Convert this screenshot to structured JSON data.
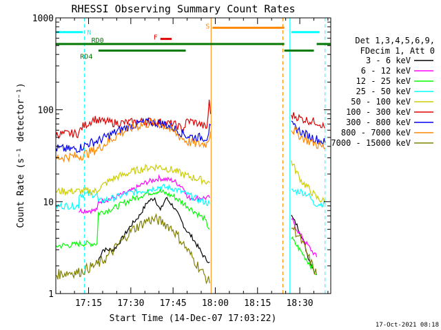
{
  "chart_data": {
    "type": "line",
    "title": "RHESSI Observing Summary Count Rates",
    "xlabel": "Start Time (14-Dec-07 17:03:22)",
    "ylabel": "Count Rate (s⁻¹ detector⁻¹)",
    "y_scale": "log",
    "ylim": [
      1,
      1000
    ],
    "xlim": [
      "17:03:22",
      "18:41:00"
    ],
    "grid": false,
    "x_ticks": [
      "17:15",
      "17:30",
      "17:45",
      "18:00",
      "18:15",
      "18:30"
    ],
    "y_ticks": [
      "1",
      "10",
      "100",
      "1000"
    ],
    "timestamp": "17-Oct-2021 08:18",
    "legend": {
      "placement": "right",
      "header": [
        "Det 1,3,4,5,6,9,",
        "FDecim 1, Att 0"
      ],
      "entries": [
        {
          "label": "3 - 6 keV",
          "color": "#000000"
        },
        {
          "label": "6 - 12 keV",
          "color": "#ff00ff"
        },
        {
          "label": "12 - 25 keV",
          "color": "#00ff00"
        },
        {
          "label": "25 - 50 keV",
          "color": "#00ffff"
        },
        {
          "label": "50 - 100 keV",
          "color": "#cccc00"
        },
        {
          "label": "100 - 300 keV",
          "color": "#e00000"
        },
        {
          "label": "300 - 800 keV",
          "color": "#0000ee"
        },
        {
          "label": "800 - 7000 keV",
          "color": "#ff8800"
        },
        {
          "label": "7000 - 15000 keV",
          "color": "#808000"
        }
      ]
    },
    "flags": [
      {
        "label": "N",
        "color": "#00ffff",
        "level": 700,
        "segments": [
          [
            "17:03:22",
            "17:13:00"
          ],
          [
            "18:27:00",
            "18:37:00"
          ]
        ]
      },
      {
        "label": "S",
        "color": "#ff8800",
        "level": 780,
        "segments": [
          [
            "17:59:00",
            "18:24:30"
          ]
        ]
      },
      {
        "label": "F",
        "color": "#e00000",
        "level": 590,
        "segments": [
          [
            "17:40:30",
            "17:44:30"
          ]
        ]
      },
      {
        "label": "RD0",
        "color": "#007700",
        "level": 520,
        "segments": [
          [
            "17:03:22",
            "18:24:30"
          ],
          [
            "18:36:00",
            "18:41:00"
          ]
        ]
      },
      {
        "label": "RD4",
        "color": "#007700",
        "level": 440,
        "segments": [
          [
            "17:18:30",
            "17:49:30"
          ],
          [
            "18:24:30",
            "18:35:00"
          ]
        ]
      }
    ],
    "markers": [
      {
        "time": "17:58:30",
        "color": "#ff8800",
        "style": "solid"
      },
      {
        "time": "18:24:00",
        "color": "#ff8800",
        "style": "dashed"
      },
      {
        "time": "17:03:22",
        "color": "#00ffff",
        "style": "solid"
      },
      {
        "time": "18:26:30",
        "color": "#00ffff",
        "style": "solid"
      },
      {
        "time": "17:13:30",
        "color": "#00ffff",
        "style": "dashed"
      },
      {
        "time": "18:39:00",
        "color": "#00ffff",
        "style": "dashed"
      }
    ],
    "series": [
      {
        "name": "3 - 6 keV",
        "color": "#000000",
        "segments": [
          {
            "x": [
              "17:18:30",
              "17:20:00",
              "17:24:00",
              "17:27:00",
              "17:30:00",
              "17:33:00",
              "17:36:00",
              "17:38:30",
              "17:40:30",
              "17:42:30",
              "17:45:00",
              "17:47:00",
              "17:49:30",
              "17:52:00",
              "17:54:30",
              "17:56:00",
              "17:58:00"
            ],
            "y": [
              2.3,
              3.0,
              3.0,
              4.0,
              5.5,
              7.0,
              10.0,
              11.0,
              8.0,
              11.0,
              9.0,
              7.0,
              5.0,
              4.0,
              3.0,
              2.5,
              2.2
            ]
          },
          {
            "x": [
              "18:27:00",
              "18:29:00",
              "18:31:00",
              "18:33:00",
              "18:35:00"
            ],
            "y": [
              7.0,
              5.5,
              4.0,
              2.5,
              1.8
            ]
          }
        ]
      },
      {
        "name": "6 - 12 keV",
        "color": "#ff00ff",
        "segments": [
          {
            "x": [
              "17:11:30",
              "17:18:00",
              "17:18:30",
              "17:24:00",
              "17:30:00",
              "17:35:00",
              "17:40:00",
              "17:45:00",
              "17:49:00",
              "17:50:00",
              "17:58:00"
            ],
            "y": [
              8.0,
              8.0,
              10.0,
              11.0,
              13.0,
              16.0,
              18.0,
              17.0,
              14.0,
              11.0,
              11.0
            ]
          },
          {
            "x": [
              "18:27:00",
              "18:29:00",
              "18:31:00",
              "18:34:00",
              "18:36:00"
            ],
            "y": [
              6.5,
              5.0,
              4.0,
              3.0,
              2.5
            ]
          }
        ]
      },
      {
        "name": "12 - 25 keV",
        "color": "#00ff00",
        "segments": [
          {
            "x": [
              "17:03:22",
              "17:10:00",
              "17:11:30",
              "17:18:00",
              "17:18:30",
              "17:24:00",
              "17:30:00",
              "17:36:00",
              "17:40:00",
              "17:45:00",
              "17:50:00",
              "17:56:00",
              "17:58:00"
            ],
            "y": [
              3.3,
              3.4,
              3.5,
              3.5,
              7.5,
              8.5,
              10.5,
              12.5,
              13.0,
              11.5,
              9.0,
              6.5,
              5.0
            ]
          },
          {
            "x": [
              "18:27:00",
              "18:30:00",
              "18:34:00",
              "18:36:00"
            ],
            "y": [
              4.0,
              3.0,
              2.0,
              1.6
            ]
          }
        ]
      },
      {
        "name": "25 - 50 keV",
        "color": "#00ffff",
        "segments": [
          {
            "x": [
              "17:03:22",
              "17:11:30",
              "17:11:40",
              "17:18:00",
              "17:18:30",
              "17:24:00",
              "17:30:00",
              "17:36:00",
              "17:40:00",
              "17:45:00",
              "17:50:00",
              "17:54:00",
              "17:58:00"
            ],
            "y": [
              9.0,
              9.0,
              12.0,
              12.0,
              10.0,
              11.0,
              12.5,
              13.5,
              14.5,
              14.0,
              12.0,
              10.5,
              9.5
            ]
          },
          {
            "x": [
              "18:27:00",
              "18:30:00",
              "18:33:00",
              "18:35:00",
              "18:39:00"
            ],
            "y": [
              13.0,
              13.0,
              12.0,
              9.5,
              9.5
            ]
          }
        ]
      },
      {
        "name": "50 - 100 keV",
        "color": "#cccc00",
        "segments": [
          {
            "x": [
              "17:03:22",
              "17:11:30",
              "17:18:00",
              "17:18:30",
              "17:24:00",
              "17:30:00",
              "17:36:00",
              "17:40:00",
              "17:45:00",
              "17:50:00",
              "17:56:00",
              "17:58:00"
            ],
            "y": [
              13.0,
              13.0,
              13.0,
              14.0,
              18.0,
              21.0,
              23.5,
              24.0,
              22.0,
              19.0,
              17.0,
              16.0
            ]
          },
          {
            "x": [
              "18:27:00",
              "18:28:30",
              "18:30:30",
              "18:34:00",
              "18:36:00",
              "18:39:00"
            ],
            "y": [
              28.0,
              22.0,
              17.0,
              13.0,
              11.0,
              10.0
            ]
          }
        ]
      },
      {
        "name": "100 - 300 keV",
        "color": "#e00000",
        "segments": [
          {
            "x": [
              "17:03:22",
              "17:08:00",
              "17:11:30",
              "17:12:00",
              "17:13:00",
              "17:15:00",
              "17:17:00",
              "17:18:30",
              "17:21:00",
              "17:24:00",
              "17:27:00",
              "17:30:00",
              "17:33:00",
              "17:36:00",
              "17:39:00",
              "17:42:00",
              "17:45:00",
              "17:47:00",
              "17:48:30",
              "17:50:00",
              "17:52:00",
              "17:54:00",
              "17:56:00",
              "17:57:00",
              "17:57:50",
              "17:58:20"
            ],
            "y": [
              54,
              55,
              55,
              60,
              66,
              72,
              80,
              76,
              74,
              72,
              72,
              73,
              74,
              75,
              74,
              72,
              70,
              66,
              60,
              76,
              74,
              71,
              66,
              63,
              120,
              90
            ]
          },
          {
            "x": [
              "18:27:00",
              "18:29:00",
              "18:30:30",
              "18:32:00",
              "18:34:00",
              "18:36:00",
              "18:37:30",
              "18:39:00"
            ],
            "y": [
              88,
              84,
              80,
              78,
              75,
              74,
              70,
              63
            ]
          }
        ]
      },
      {
        "name": "300 - 800 keV",
        "color": "#0000ee",
        "segments": [
          {
            "x": [
              "17:03:22",
              "17:08:00",
              "17:11:30",
              "17:15:00",
              "17:18:30",
              "17:22:00",
              "17:26:00",
              "17:30:00",
              "17:34:00",
              "17:38:00",
              "17:42:00",
              "17:45:00",
              "17:48:00",
              "17:50:00",
              "17:54:00",
              "17:57:00",
              "17:58:20"
            ],
            "y": [
              38,
              37,
              38,
              43,
              46,
              52,
              60,
              67,
              72,
              73,
              70,
              64,
              56,
              52,
              50,
              50,
              68
            ]
          },
          {
            "x": [
              "18:27:00",
              "18:29:00",
              "18:31:00",
              "18:33:00",
              "18:36:00",
              "18:39:00"
            ],
            "y": [
              68,
              62,
              56,
              52,
              48,
              44
            ]
          }
        ]
      },
      {
        "name": "800 - 7000 keV",
        "color": "#ff8800",
        "segments": [
          {
            "x": [
              "17:03:22",
              "17:08:00",
              "17:11:30",
              "17:15:00",
              "17:18:30",
              "17:22:00",
              "17:26:00",
              "17:30:00",
              "17:34:00",
              "17:38:00",
              "17:42:00",
              "17:45:00",
              "17:48:00",
              "17:50:00",
              "17:54:00",
              "17:57:00",
              "17:58:20"
            ],
            "y": [
              30,
              31,
              31,
              34,
              38,
              45,
              55,
              63,
              69,
              72,
              67,
              58,
              50,
              45,
              42,
              43,
              58
            ]
          },
          {
            "x": [
              "18:27:00",
              "18:29:00",
              "18:31:00",
              "18:33:00",
              "18:36:00",
              "18:39:00"
            ],
            "y": [
              62,
              56,
              50,
              46,
              42,
              38
            ]
          }
        ]
      },
      {
        "name": "7000 - 15000 keV",
        "color": "#808000",
        "segments": [
          {
            "x": [
              "17:03:22",
              "17:08:00",
              "17:11:30",
              "17:15:00",
              "17:18:30",
              "17:21:00",
              "17:24:00",
              "17:27:00",
              "17:30:00",
              "17:33:00",
              "17:36:00",
              "17:39:00",
              "17:42:00",
              "17:45:00",
              "17:48:00",
              "17:50:00",
              "17:53:00",
              "17:56:00",
              "17:58:00"
            ],
            "y": [
              1.6,
              1.7,
              1.7,
              1.9,
              2.1,
              2.4,
              3.0,
              3.8,
              4.8,
              5.5,
              6.3,
              6.4,
              5.8,
              5.0,
              3.7,
              3.0,
              2.2,
              1.6,
              1.3
            ]
          },
          {
            "x": [
              "18:27:00",
              "18:29:00",
              "18:31:00",
              "18:33:00",
              "18:36:00"
            ],
            "y": [
              5.5,
              4.5,
              3.5,
              2.5,
              1.6
            ]
          }
        ]
      }
    ]
  }
}
